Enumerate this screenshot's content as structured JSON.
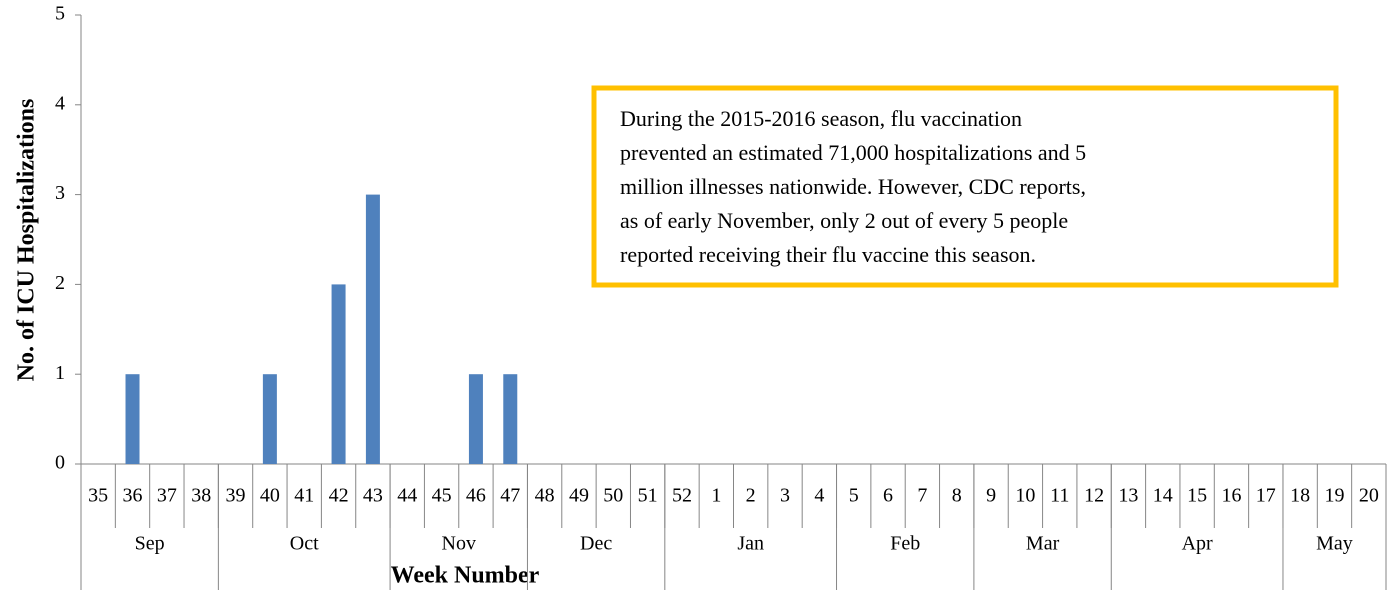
{
  "chart_data": {
    "type": "bar",
    "y_axis_label": "No. of ICU Hospitalizations",
    "x_axis_label": "Week Number",
    "categories": [
      "35",
      "36",
      "37",
      "38",
      "39",
      "40",
      "41",
      "42",
      "43",
      "44",
      "45",
      "46",
      "47",
      "48",
      "49",
      "50",
      "51",
      "52",
      "1",
      "2",
      "3",
      "4",
      "5",
      "6",
      "7",
      "8",
      "9",
      "10",
      "11",
      "12",
      "13",
      "14",
      "15",
      "16",
      "17",
      "18",
      "19",
      "20"
    ],
    "values": [
      0,
      1,
      0,
      0,
      0,
      1,
      0,
      2,
      3,
      0,
      0,
      1,
      1,
      0,
      0,
      0,
      0,
      0,
      0,
      0,
      0,
      0,
      0,
      0,
      0,
      0,
      0,
      0,
      0,
      0,
      0,
      0,
      0,
      0,
      0,
      0,
      0,
      0
    ],
    "category_groups": [
      {
        "label": "Sep",
        "span": 4
      },
      {
        "label": "Oct",
        "span": 5
      },
      {
        "label": "Nov",
        "span": 4
      },
      {
        "label": "Dec",
        "span": 4
      },
      {
        "label": "Jan",
        "span": 5
      },
      {
        "label": "Feb",
        "span": 4
      },
      {
        "label": "Mar",
        "span": 4
      },
      {
        "label": "Apr",
        "span": 5
      },
      {
        "label": "May",
        "span": 3
      }
    ],
    "color": "#4f81bd",
    "ylim": [
      0,
      5
    ],
    "yticks": [
      0,
      1,
      2,
      3,
      4,
      5
    ],
    "grid": false,
    "annotation_lines": [
      "During the 2015-2016 season, flu vaccination",
      "prevented an estimated 71,000 hospitalizations and 5",
      "million illnesses nationwide. However, CDC reports,",
      "as of early November, only 2 out of every 5 people",
      "reported receiving their flu vaccine this season."
    ],
    "annotation_border_color": "#ffc000"
  }
}
